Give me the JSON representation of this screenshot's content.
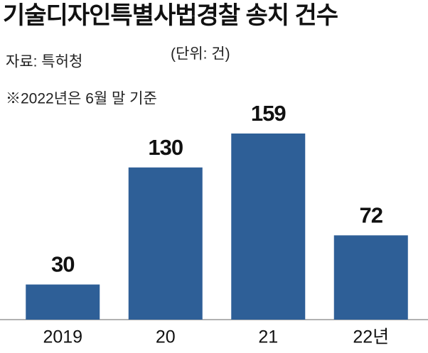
{
  "chart_data": {
    "type": "bar",
    "title": "기술디자인특별사법경찰 송치 건수",
    "unit": "(단위: 건)",
    "source": "자료: 특허청",
    "note": "※2022년은 6월 말 기준",
    "categories": [
      "2019",
      "20",
      "21",
      "22년"
    ],
    "values": [
      30,
      130,
      159,
      72
    ],
    "color": "#2e5f97"
  }
}
